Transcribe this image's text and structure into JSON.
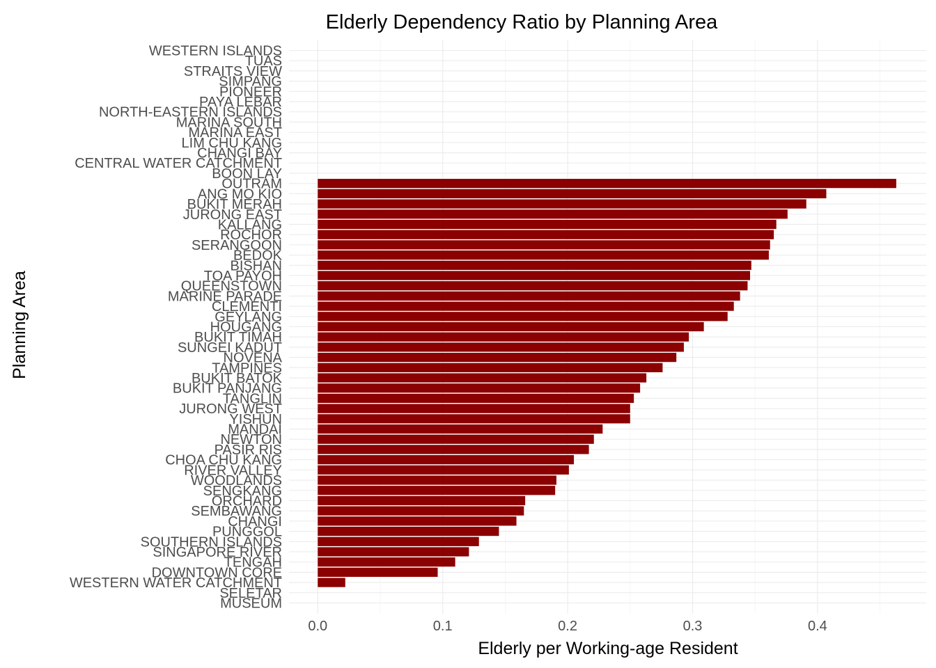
{
  "chart_data": {
    "type": "bar",
    "orientation": "horizontal",
    "title": "Elderly Dependency Ratio by Planning Area",
    "xlabel": "Elderly per Working-age Resident",
    "ylabel": "Planning Area",
    "xlim": [
      -0.023,
      0.487
    ],
    "x_ticks": [
      0.0,
      0.1,
      0.2,
      0.3,
      0.4
    ],
    "x_tick_labels": [
      "0.0",
      "0.1",
      "0.2",
      "0.3",
      "0.4"
    ],
    "grid": true,
    "legend": "none",
    "bar_color": "#8B0000",
    "categories": [
      "WESTERN ISLANDS",
      "TUAS",
      "STRAITS VIEW",
      "SIMPANG",
      "PIONEER",
      "PAYA LEBAR",
      "NORTH-EASTERN ISLANDS",
      "MARINA SOUTH",
      "MARINA EAST",
      "LIM CHU KANG",
      "CHANGI BAY",
      "CENTRAL WATER CATCHMENT",
      "BOON LAY",
      "OUTRAM",
      "ANG MO KIO",
      "BUKIT MERAH",
      "JURONG EAST",
      "KALLANG",
      "ROCHOR",
      "SERANGOON",
      "BEDOK",
      "BISHAN",
      "TOA PAYOH",
      "QUEENSTOWN",
      "MARINE PARADE",
      "CLEMENTI",
      "GEYLANG",
      "HOUGANG",
      "BUKIT TIMAH",
      "SUNGEI KADUT",
      "NOVENA",
      "TAMPINES",
      "BUKIT BATOK",
      "BUKIT PANJANG",
      "TANGLIN",
      "JURONG WEST",
      "YISHUN",
      "MANDAI",
      "NEWTON",
      "PASIR RIS",
      "CHOA CHU KANG",
      "RIVER VALLEY",
      "WOODLANDS",
      "SENGKANG",
      "ORCHARD",
      "SEMBAWANG",
      "CHANGI",
      "PUNGGOL",
      "SOUTHERN ISLANDS",
      "SINGAPORE RIVER",
      "TENGAH",
      "DOWNTOWN CORE",
      "WESTERN WATER CATCHMENT",
      "SELETAR",
      "MUSEUM"
    ],
    "values": [
      0,
      0,
      0,
      0,
      0,
      0,
      0,
      0,
      0,
      0,
      0,
      0,
      0,
      0.463,
      0.407,
      0.391,
      0.376,
      0.367,
      0.365,
      0.362,
      0.361,
      0.347,
      0.346,
      0.344,
      0.338,
      0.333,
      0.328,
      0.309,
      0.297,
      0.293,
      0.287,
      0.276,
      0.263,
      0.258,
      0.253,
      0.25,
      0.25,
      0.228,
      0.221,
      0.217,
      0.205,
      0.201,
      0.191,
      0.19,
      0.166,
      0.165,
      0.159,
      0.145,
      0.129,
      0.121,
      0.11,
      0.096,
      0.022,
      0,
      0
    ]
  }
}
